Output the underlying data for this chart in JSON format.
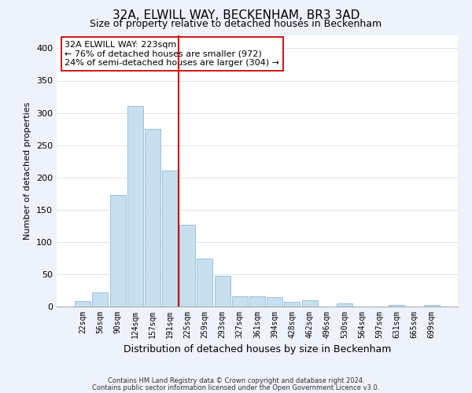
{
  "title": "32A, ELWILL WAY, BECKENHAM, BR3 3AD",
  "subtitle": "Size of property relative to detached houses in Beckenham",
  "xlabel": "Distribution of detached houses by size in Beckenham",
  "ylabel": "Number of detached properties",
  "bar_labels": [
    "22sqm",
    "56sqm",
    "90sqm",
    "124sqm",
    "157sqm",
    "191sqm",
    "225sqm",
    "259sqm",
    "293sqm",
    "327sqm",
    "361sqm",
    "394sqm",
    "428sqm",
    "462sqm",
    "496sqm",
    "530sqm",
    "564sqm",
    "597sqm",
    "631sqm",
    "665sqm",
    "699sqm"
  ],
  "bar_values": [
    8,
    22,
    173,
    310,
    275,
    210,
    127,
    74,
    48,
    16,
    16,
    15,
    7,
    10,
    0,
    5,
    0,
    0,
    3,
    0,
    3
  ],
  "bar_color": "#c8dff0",
  "bar_edge_color": "#8bbbd8",
  "vline_color": "#cc0000",
  "ylim": [
    0,
    420
  ],
  "yticks": [
    0,
    50,
    100,
    150,
    200,
    250,
    300,
    350,
    400
  ],
  "annotation_title": "32A ELWILL WAY: 223sqm",
  "annotation_line1": "← 76% of detached houses are smaller (972)",
  "annotation_line2": "24% of semi-detached houses are larger (304) →",
  "footnote1": "Contains HM Land Registry data © Crown copyright and database right 2024.",
  "footnote2": "Contains public sector information licensed under the Open Government Licence v3.0.",
  "background_color": "#eef2fb",
  "plot_bg_color": "#ffffff",
  "title_fontsize": 11,
  "subtitle_fontsize": 9,
  "annotation_fontsize": 8,
  "axis_label_fontsize": 8,
  "tick_fontsize": 7
}
